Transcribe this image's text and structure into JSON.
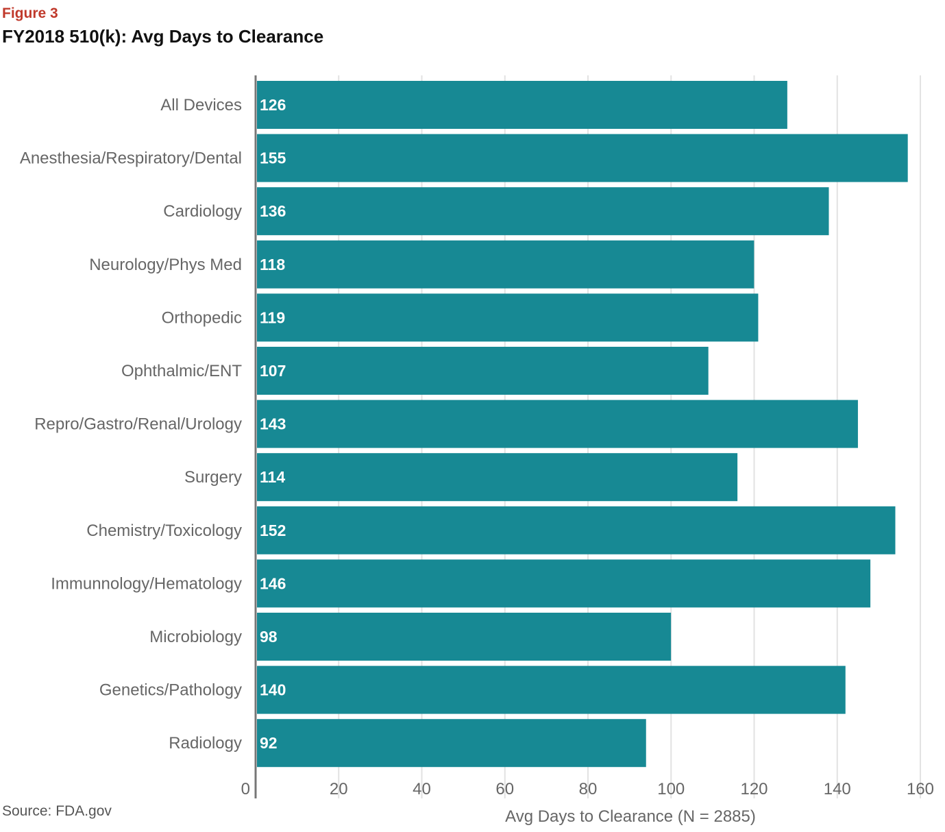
{
  "figure_label": "Figure 3",
  "source": "Source: FDA.gov",
  "chart_data": {
    "type": "bar",
    "orientation": "horizontal",
    "title": "FY2018 510(k): Avg Days to Clearance",
    "xlabel": "Avg Days to Clearance (N = 2885)",
    "categories": [
      "All Devices",
      "Anesthesia/Respiratory/Dental",
      "Cardiology",
      "Neurology/Phys Med",
      "Orthopedic",
      "Ophthalmic/ENT",
      "Repro/Gastro/Renal/Urology",
      "Surgery",
      "Chemistry/Toxicology",
      "Immunnology/Hematology",
      "Microbiology",
      "Genetics/Pathology",
      "Radiology"
    ],
    "values": [
      126,
      155,
      136,
      118,
      119,
      107,
      143,
      114,
      152,
      146,
      98,
      140,
      92
    ],
    "data_labels": [
      "126",
      "155",
      "136",
      "118",
      "119",
      "107",
      "143",
      "114",
      "152",
      "146",
      "98",
      "140",
      "92"
    ],
    "xlim": [
      0,
      160
    ],
    "xticks": [
      0,
      20,
      40,
      60,
      80,
      100,
      120,
      140,
      160
    ],
    "xtick_labels": [
      "0",
      "20",
      "40",
      "60",
      "80",
      "100",
      "120",
      "140",
      "160"
    ],
    "grid": true,
    "bar_color": "#178994",
    "legend": "none"
  }
}
